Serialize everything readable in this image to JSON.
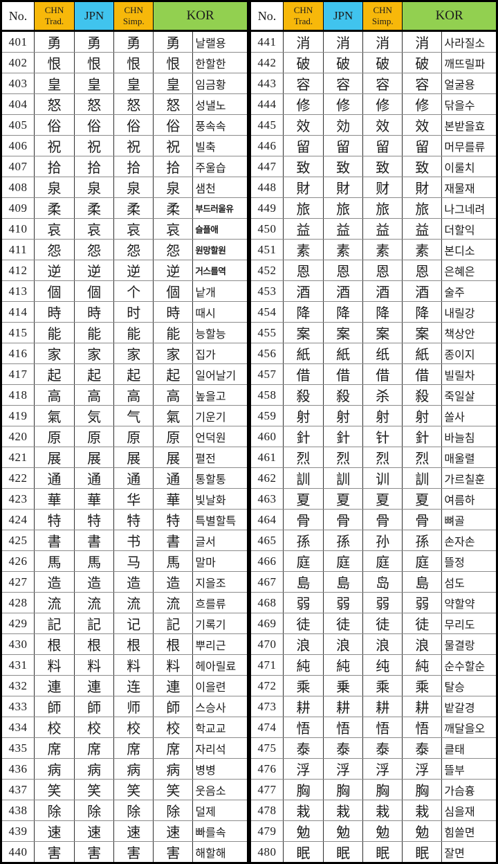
{
  "colors": {
    "chn_header_bg": "#F7B80A",
    "jpn_header_bg": "#40C4EE",
    "kor_header_bg": "#92D050",
    "border": "#000000"
  },
  "header": {
    "no": "No.",
    "chn_trad_line1": "CHN",
    "chn_trad_line2": "Trad.",
    "jpn": "JPN",
    "chn_simp_line1": "CHN",
    "chn_simp_line2": "Simp.",
    "kor": "KOR"
  },
  "tables": [
    {
      "bold_rows": [
        "409",
        "410",
        "411",
        "412"
      ],
      "rows": [
        {
          "no": "401",
          "trad": "勇",
          "jpn": "勇",
          "simp": "勇",
          "kor": "勇",
          "read": "날랠용"
        },
        {
          "no": "402",
          "trad": "恨",
          "jpn": "恨",
          "simp": "恨",
          "kor": "恨",
          "read": "한할한"
        },
        {
          "no": "403",
          "trad": "皇",
          "jpn": "皇",
          "simp": "皇",
          "kor": "皇",
          "read": "임금황"
        },
        {
          "no": "404",
          "trad": "怒",
          "jpn": "怒",
          "simp": "怒",
          "kor": "怒",
          "read": "성낼노"
        },
        {
          "no": "405",
          "trad": "俗",
          "jpn": "俗",
          "simp": "俗",
          "kor": "俗",
          "read": "풍속속"
        },
        {
          "no": "406",
          "trad": "祝",
          "jpn": "祝",
          "simp": "祝",
          "kor": "祝",
          "read": "빌축"
        },
        {
          "no": "407",
          "trad": "拾",
          "jpn": "拾",
          "simp": "拾",
          "kor": "拾",
          "read": "주울습"
        },
        {
          "no": "408",
          "trad": "泉",
          "jpn": "泉",
          "simp": "泉",
          "kor": "泉",
          "read": "샘천"
        },
        {
          "no": "409",
          "trad": "柔",
          "jpn": "柔",
          "simp": "柔",
          "kor": "柔",
          "read": "부드러울유"
        },
        {
          "no": "410",
          "trad": "哀",
          "jpn": "哀",
          "simp": "哀",
          "kor": "哀",
          "read": "슬플애"
        },
        {
          "no": "411",
          "trad": "怨",
          "jpn": "怨",
          "simp": "怨",
          "kor": "怨",
          "read": "원망할원"
        },
        {
          "no": "412",
          "trad": "逆",
          "jpn": "逆",
          "simp": "逆",
          "kor": "逆",
          "read": "거스를역"
        },
        {
          "no": "413",
          "trad": "個",
          "jpn": "個",
          "simp": "个",
          "kor": "個",
          "read": "낱개"
        },
        {
          "no": "414",
          "trad": "時",
          "jpn": "時",
          "simp": "时",
          "kor": "時",
          "read": "때시"
        },
        {
          "no": "415",
          "trad": "能",
          "jpn": "能",
          "simp": "能",
          "kor": "能",
          "read": "능할능"
        },
        {
          "no": "416",
          "trad": "家",
          "jpn": "家",
          "simp": "家",
          "kor": "家",
          "read": "집가"
        },
        {
          "no": "417",
          "trad": "起",
          "jpn": "起",
          "simp": "起",
          "kor": "起",
          "read": "일어날기"
        },
        {
          "no": "418",
          "trad": "高",
          "jpn": "高",
          "simp": "高",
          "kor": "高",
          "read": "높을고"
        },
        {
          "no": "419",
          "trad": "氣",
          "jpn": "気",
          "simp": "气",
          "kor": "氣",
          "read": "기운기"
        },
        {
          "no": "420",
          "trad": "原",
          "jpn": "原",
          "simp": "原",
          "kor": "原",
          "read": "언덕원"
        },
        {
          "no": "421",
          "trad": "展",
          "jpn": "展",
          "simp": "展",
          "kor": "展",
          "read": "펼전"
        },
        {
          "no": "422",
          "trad": "通",
          "jpn": "通",
          "simp": "通",
          "kor": "通",
          "read": "통할통"
        },
        {
          "no": "423",
          "trad": "華",
          "jpn": "華",
          "simp": "华",
          "kor": "華",
          "read": "빛날화"
        },
        {
          "no": "424",
          "trad": "特",
          "jpn": "特",
          "simp": "特",
          "kor": "特",
          "read": "특별할특"
        },
        {
          "no": "425",
          "trad": "書",
          "jpn": "書",
          "simp": "书",
          "kor": "書",
          "read": "글서"
        },
        {
          "no": "426",
          "trad": "馬",
          "jpn": "馬",
          "simp": "马",
          "kor": "馬",
          "read": "말마"
        },
        {
          "no": "427",
          "trad": "造",
          "jpn": "造",
          "simp": "造",
          "kor": "造",
          "read": "지을조"
        },
        {
          "no": "428",
          "trad": "流",
          "jpn": "流",
          "simp": "流",
          "kor": "流",
          "read": "흐를류"
        },
        {
          "no": "429",
          "trad": "記",
          "jpn": "記",
          "simp": "记",
          "kor": "記",
          "read": "기록기"
        },
        {
          "no": "430",
          "trad": "根",
          "jpn": "根",
          "simp": "根",
          "kor": "根",
          "read": "뿌리근"
        },
        {
          "no": "431",
          "trad": "料",
          "jpn": "料",
          "simp": "料",
          "kor": "料",
          "read": "헤아릴료"
        },
        {
          "no": "432",
          "trad": "連",
          "jpn": "連",
          "simp": "连",
          "kor": "連",
          "read": "이을련"
        },
        {
          "no": "433",
          "trad": "師",
          "jpn": "師",
          "simp": "师",
          "kor": "師",
          "read": "스승사"
        },
        {
          "no": "434",
          "trad": "校",
          "jpn": "校",
          "simp": "校",
          "kor": "校",
          "read": "학교교"
        },
        {
          "no": "435",
          "trad": "席",
          "jpn": "席",
          "simp": "席",
          "kor": "席",
          "read": "자리석"
        },
        {
          "no": "436",
          "trad": "病",
          "jpn": "病",
          "simp": "病",
          "kor": "病",
          "read": "병병"
        },
        {
          "no": "437",
          "trad": "笑",
          "jpn": "笑",
          "simp": "笑",
          "kor": "笑",
          "read": "웃음소"
        },
        {
          "no": "438",
          "trad": "除",
          "jpn": "除",
          "simp": "除",
          "kor": "除",
          "read": "덜제"
        },
        {
          "no": "439",
          "trad": "速",
          "jpn": "速",
          "simp": "速",
          "kor": "速",
          "read": "빠를속"
        },
        {
          "no": "440",
          "trad": "害",
          "jpn": "害",
          "simp": "害",
          "kor": "害",
          "read": "해할해"
        }
      ]
    },
    {
      "bold_rows": [],
      "rows": [
        {
          "no": "441",
          "trad": "消",
          "jpn": "消",
          "simp": "消",
          "kor": "消",
          "read": "사라질소"
        },
        {
          "no": "442",
          "trad": "破",
          "jpn": "破",
          "simp": "破",
          "kor": "破",
          "read": "깨뜨릴파"
        },
        {
          "no": "443",
          "trad": "容",
          "jpn": "容",
          "simp": "容",
          "kor": "容",
          "read": "얼굴용"
        },
        {
          "no": "444",
          "trad": "修",
          "jpn": "修",
          "simp": "修",
          "kor": "修",
          "read": "닦을수"
        },
        {
          "no": "445",
          "trad": "效",
          "jpn": "効",
          "simp": "效",
          "kor": "效",
          "read": "본받을효"
        },
        {
          "no": "446",
          "trad": "留",
          "jpn": "留",
          "simp": "留",
          "kor": "留",
          "read": "머무를류"
        },
        {
          "no": "447",
          "trad": "致",
          "jpn": "致",
          "simp": "致",
          "kor": "致",
          "read": "이룰치"
        },
        {
          "no": "448",
          "trad": "財",
          "jpn": "財",
          "simp": "财",
          "kor": "財",
          "read": "재물재"
        },
        {
          "no": "449",
          "trad": "旅",
          "jpn": "旅",
          "simp": "旅",
          "kor": "旅",
          "read": "나그네려"
        },
        {
          "no": "450",
          "trad": "益",
          "jpn": "益",
          "simp": "益",
          "kor": "益",
          "read": "더할익"
        },
        {
          "no": "451",
          "trad": "素",
          "jpn": "素",
          "simp": "素",
          "kor": "素",
          "read": "본디소"
        },
        {
          "no": "452",
          "trad": "恩",
          "jpn": "恩",
          "simp": "恩",
          "kor": "恩",
          "read": "은혜은"
        },
        {
          "no": "453",
          "trad": "酒",
          "jpn": "酒",
          "simp": "酒",
          "kor": "酒",
          "read": "술주"
        },
        {
          "no": "454",
          "trad": "降",
          "jpn": "降",
          "simp": "降",
          "kor": "降",
          "read": "내릴강"
        },
        {
          "no": "455",
          "trad": "案",
          "jpn": "案",
          "simp": "案",
          "kor": "案",
          "read": "책상안"
        },
        {
          "no": "456",
          "trad": "紙",
          "jpn": "紙",
          "simp": "纸",
          "kor": "紙",
          "read": "종이지"
        },
        {
          "no": "457",
          "trad": "借",
          "jpn": "借",
          "simp": "借",
          "kor": "借",
          "read": "빌릴차"
        },
        {
          "no": "458",
          "trad": "殺",
          "jpn": "殺",
          "simp": "杀",
          "kor": "殺",
          "read": "죽일살"
        },
        {
          "no": "459",
          "trad": "射",
          "jpn": "射",
          "simp": "射",
          "kor": "射",
          "read": "쏠사"
        },
        {
          "no": "460",
          "trad": "針",
          "jpn": "針",
          "simp": "针",
          "kor": "針",
          "read": "바늘침"
        },
        {
          "no": "461",
          "trad": "烈",
          "jpn": "烈",
          "simp": "烈",
          "kor": "烈",
          "read": "매울렬"
        },
        {
          "no": "462",
          "trad": "訓",
          "jpn": "訓",
          "simp": "训",
          "kor": "訓",
          "read": "가르칠훈"
        },
        {
          "no": "463",
          "trad": "夏",
          "jpn": "夏",
          "simp": "夏",
          "kor": "夏",
          "read": "여름하"
        },
        {
          "no": "464",
          "trad": "骨",
          "jpn": "骨",
          "simp": "骨",
          "kor": "骨",
          "read": "뼈골"
        },
        {
          "no": "465",
          "trad": "孫",
          "jpn": "孫",
          "simp": "孙",
          "kor": "孫",
          "read": "손자손"
        },
        {
          "no": "466",
          "trad": "庭",
          "jpn": "庭",
          "simp": "庭",
          "kor": "庭",
          "read": "뜰정"
        },
        {
          "no": "467",
          "trad": "島",
          "jpn": "島",
          "simp": "岛",
          "kor": "島",
          "read": "섬도"
        },
        {
          "no": "468",
          "trad": "弱",
          "jpn": "弱",
          "simp": "弱",
          "kor": "弱",
          "read": "약할약"
        },
        {
          "no": "469",
          "trad": "徒",
          "jpn": "徒",
          "simp": "徒",
          "kor": "徒",
          "read": "무리도"
        },
        {
          "no": "470",
          "trad": "浪",
          "jpn": "浪",
          "simp": "浪",
          "kor": "浪",
          "read": "물결랑"
        },
        {
          "no": "471",
          "trad": "純",
          "jpn": "純",
          "simp": "纯",
          "kor": "純",
          "read": "순수할순"
        },
        {
          "no": "472",
          "trad": "乘",
          "jpn": "乗",
          "simp": "乘",
          "kor": "乘",
          "read": "탈승"
        },
        {
          "no": "473",
          "trad": "耕",
          "jpn": "耕",
          "simp": "耕",
          "kor": "耕",
          "read": "밭갈경"
        },
        {
          "no": "474",
          "trad": "悟",
          "jpn": "悟",
          "simp": "悟",
          "kor": "悟",
          "read": "깨달을오"
        },
        {
          "no": "475",
          "trad": "泰",
          "jpn": "泰",
          "simp": "泰",
          "kor": "泰",
          "read": "클태"
        },
        {
          "no": "476",
          "trad": "浮",
          "jpn": "浮",
          "simp": "浮",
          "kor": "浮",
          "read": "뜰부"
        },
        {
          "no": "477",
          "trad": "胸",
          "jpn": "胸",
          "simp": "胸",
          "kor": "胸",
          "read": "가슴흉"
        },
        {
          "no": "478",
          "trad": "栽",
          "jpn": "栽",
          "simp": "栽",
          "kor": "栽",
          "read": "심을재"
        },
        {
          "no": "479",
          "trad": "勉",
          "jpn": "勉",
          "simp": "勉",
          "kor": "勉",
          "read": "힘쓸면"
        },
        {
          "no": "480",
          "trad": "眠",
          "jpn": "眠",
          "simp": "眠",
          "kor": "眠",
          "read": "잘면"
        }
      ]
    }
  ]
}
